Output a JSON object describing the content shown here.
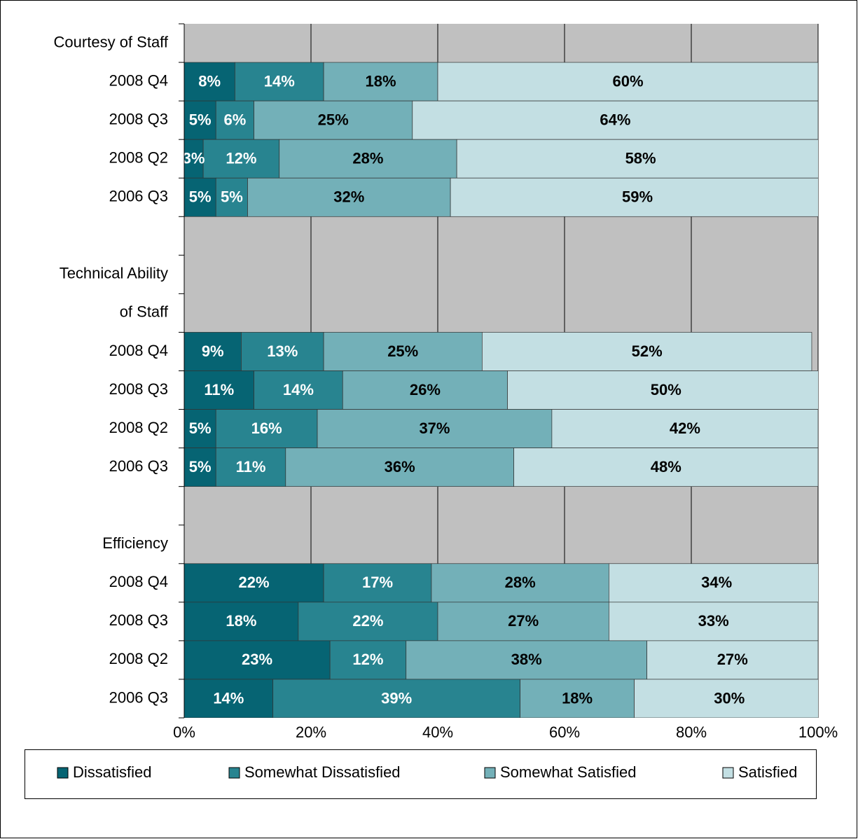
{
  "chart_data": {
    "type": "stacked_barh",
    "categories": [
      "Courtesy of Staff",
      "2008 Q4",
      "2008 Q3",
      "2008 Q2",
      "2006 Q3",
      null,
      "Technical Ability",
      "of Staff",
      "2008 Q4",
      "2008 Q3",
      "2008 Q2",
      "2006 Q3",
      null,
      "Efficiency",
      "2008 Q4",
      "2008 Q3",
      "2008 Q2",
      "2006 Q3"
    ],
    "series": [
      {
        "name": "Dissatisfied",
        "color": "#066473",
        "label_color": "#ffffff",
        "values": [
          null,
          8,
          5,
          3,
          5,
          null,
          null,
          null,
          9,
          11,
          5,
          5,
          null,
          null,
          22,
          18,
          23,
          14
        ],
        "value_labels": [
          null,
          "8%",
          "5%",
          "3%",
          "5%",
          null,
          null,
          null,
          "9%",
          "11%",
          "5%",
          "5%",
          null,
          null,
          "22%",
          "18%",
          "23%",
          "14%"
        ]
      },
      {
        "name": "Somewhat Dissatisfied",
        "color": "#288490",
        "label_color": "#ffffff",
        "values": [
          null,
          14,
          6,
          12,
          5,
          null,
          null,
          null,
          13,
          14,
          16,
          11,
          null,
          null,
          17,
          22,
          12,
          39
        ],
        "value_labels": [
          null,
          "14%",
          "6%",
          "12%",
          "5%",
          null,
          null,
          null,
          "13%",
          "14%",
          "16%",
          "11%",
          null,
          null,
          "17%",
          "22%",
          "12%",
          "39%"
        ]
      },
      {
        "name": "Somewhat Satisfied",
        "color": "#73b0b8",
        "label_color": "#000000",
        "values": [
          null,
          18,
          25,
          28,
          32,
          null,
          null,
          null,
          25,
          26,
          37,
          36,
          null,
          null,
          28,
          27,
          38,
          18
        ],
        "value_labels": [
          null,
          "18%",
          "25%",
          "28%",
          "32%",
          null,
          null,
          null,
          "25%",
          "26%",
          "37%",
          "36%",
          null,
          null,
          "28%",
          "27%",
          "38%",
          "18%"
        ]
      },
      {
        "name": "Satisfied",
        "color": "#c3dfe3",
        "label_color": "#000000",
        "values": [
          null,
          60,
          64,
          58,
          59,
          null,
          null,
          null,
          52,
          50,
          42,
          48,
          null,
          null,
          34,
          33,
          27,
          30
        ],
        "value_labels": [
          null,
          "60%",
          "64%",
          "58%",
          "59%",
          null,
          null,
          null,
          "52%",
          "50%",
          "42%",
          "48%",
          null,
          null,
          "34%",
          "33%",
          "27%",
          "30%"
        ]
      }
    ],
    "xlim": [
      0,
      100
    ],
    "xticks": [
      {
        "value": 0,
        "label": "0%"
      },
      {
        "value": 20,
        "label": "20%"
      },
      {
        "value": 40,
        "label": "40%"
      },
      {
        "value": 60,
        "label": "60%"
      },
      {
        "value": 80,
        "label": "80%"
      },
      {
        "value": 100,
        "label": "100%"
      }
    ],
    "grid": true,
    "plot_background": "#c0c0c0",
    "legend": "bottom"
  }
}
